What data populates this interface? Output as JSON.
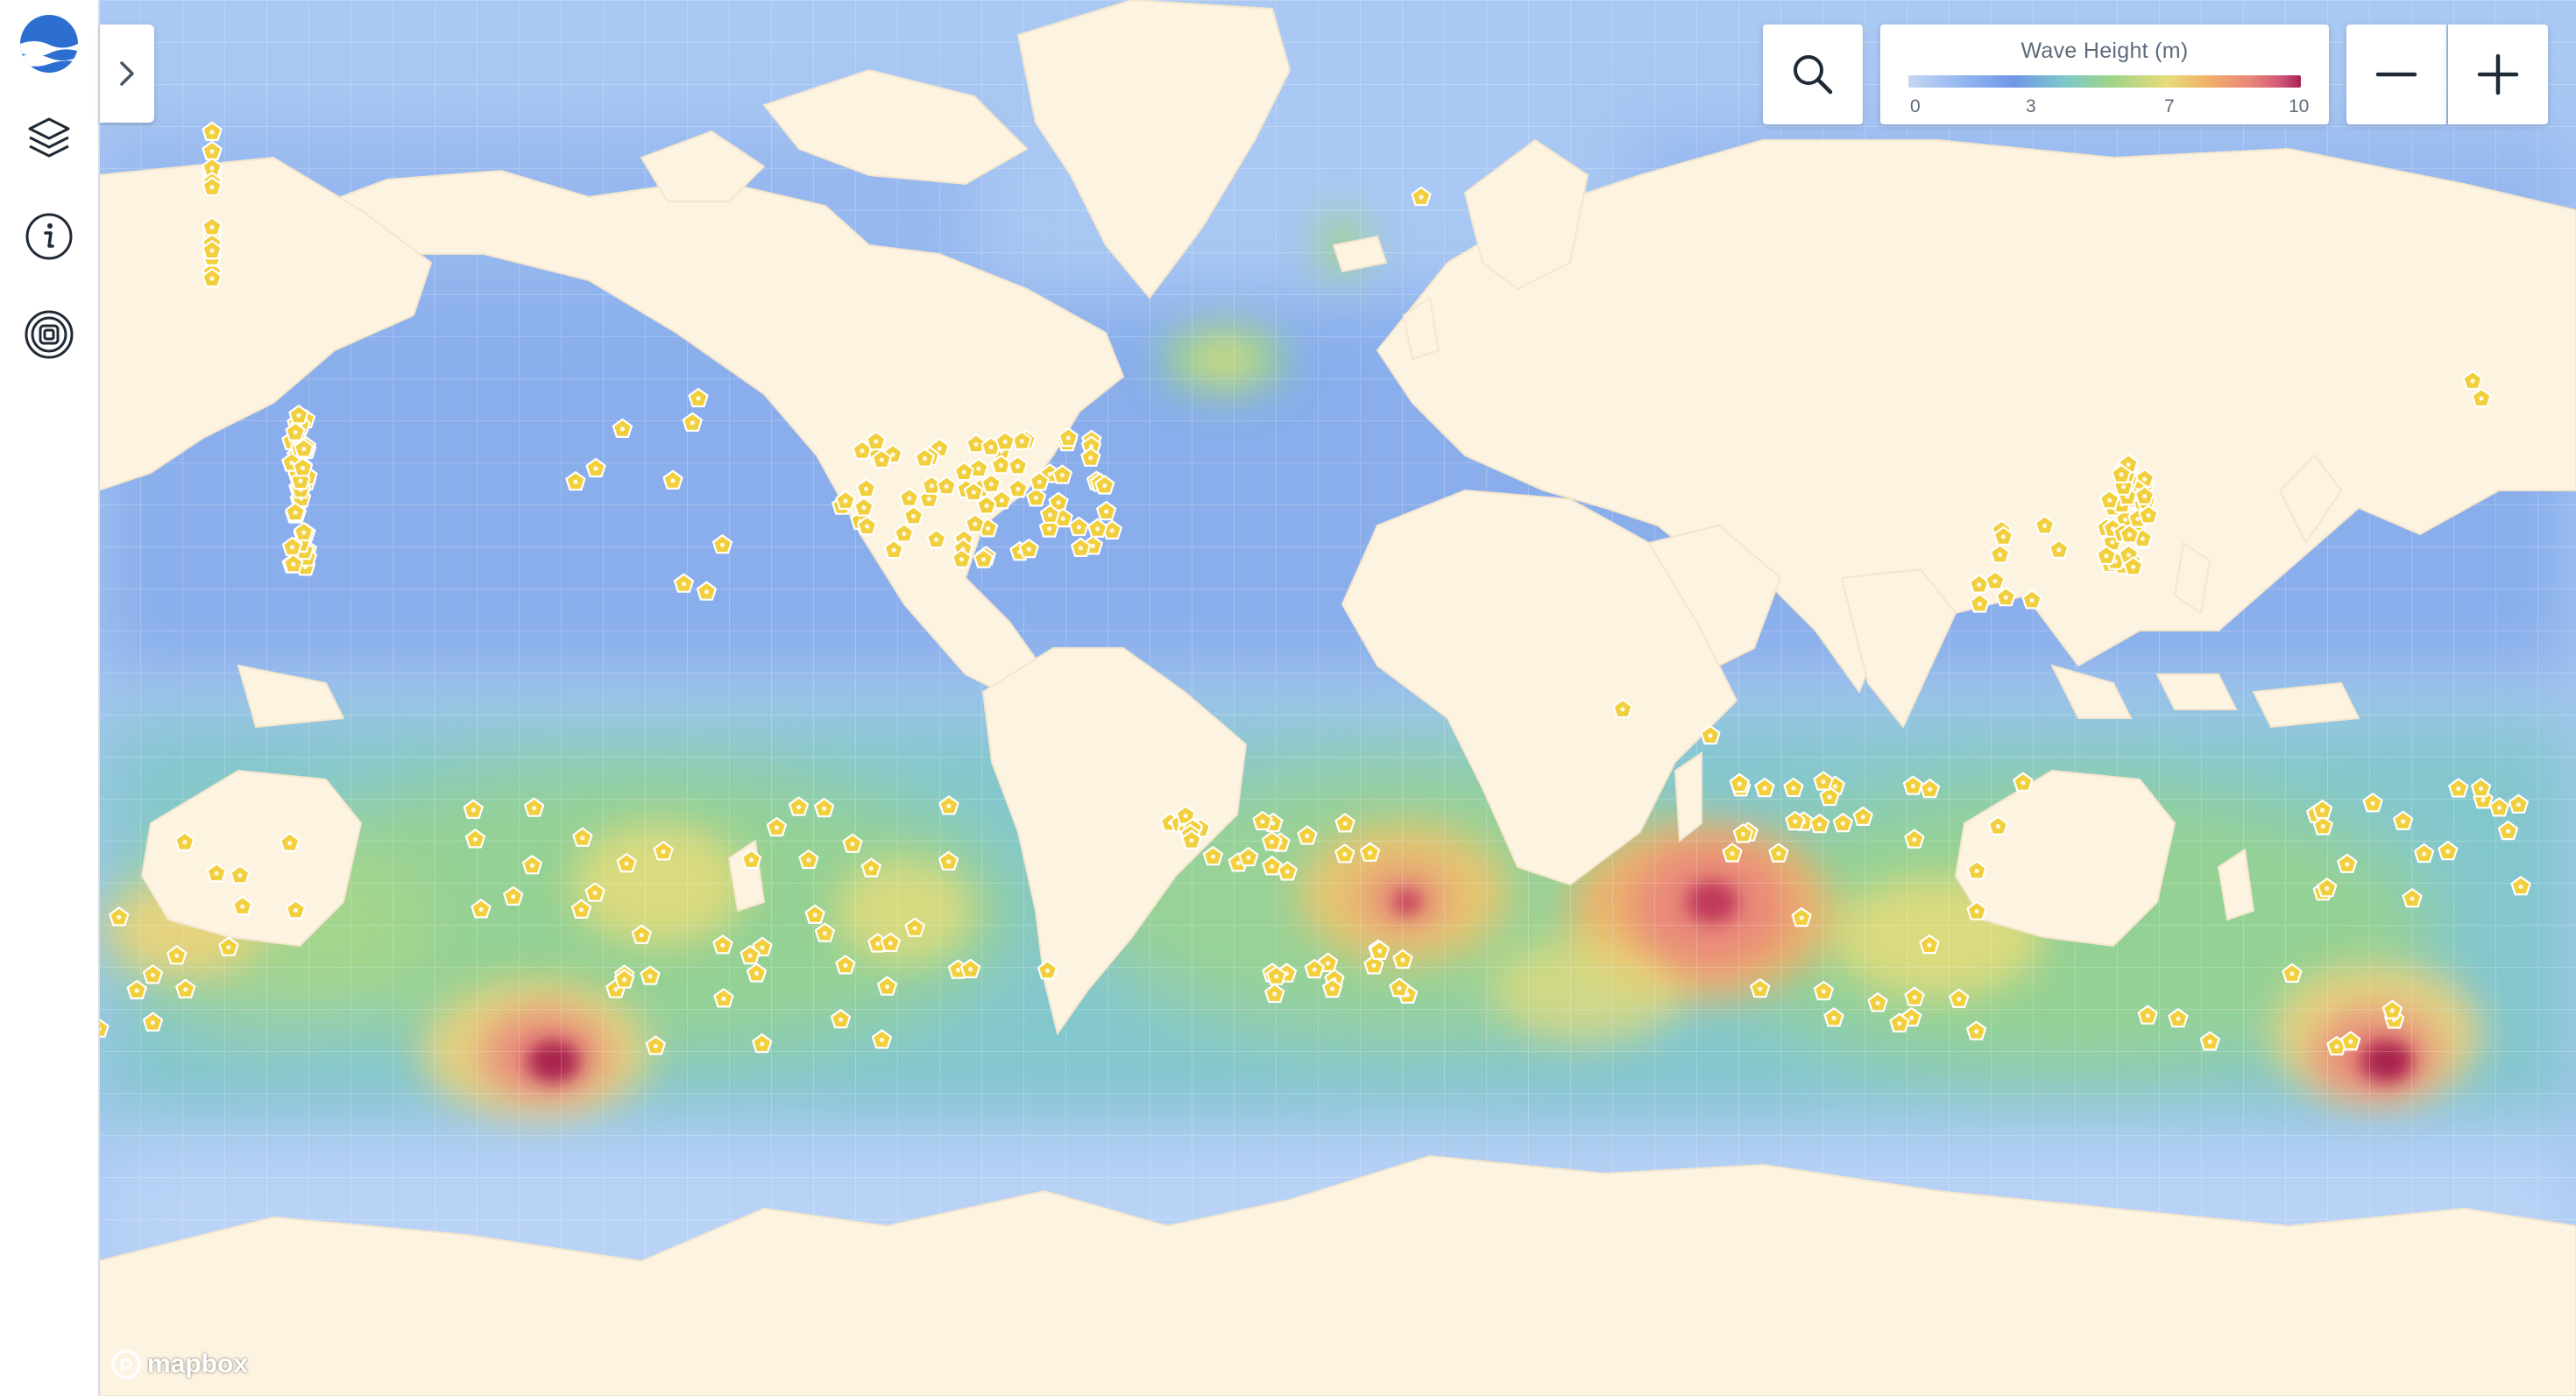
{
  "sidebar": {
    "items": [
      {
        "name": "layers-icon"
      },
      {
        "name": "info-icon"
      },
      {
        "name": "target-icon"
      }
    ]
  },
  "legend": {
    "title": "Wave Height (m)",
    "labels": [
      "0",
      "3",
      "7",
      "10"
    ],
    "gradient": [
      "#c6d6f4",
      "#8fb3ef",
      "#6f97e6",
      "#7fc8c8",
      "#9fd488",
      "#e8dc7a",
      "#f0b26a",
      "#e9877a",
      "#d05577",
      "#a8204e"
    ]
  },
  "attribution": "mapbox",
  "colors": {
    "ocean": "#a9c8f3",
    "land": "#fdf3e1",
    "buoy": "#f2cf3d",
    "brand_blue": "#2d6fd0"
  }
}
